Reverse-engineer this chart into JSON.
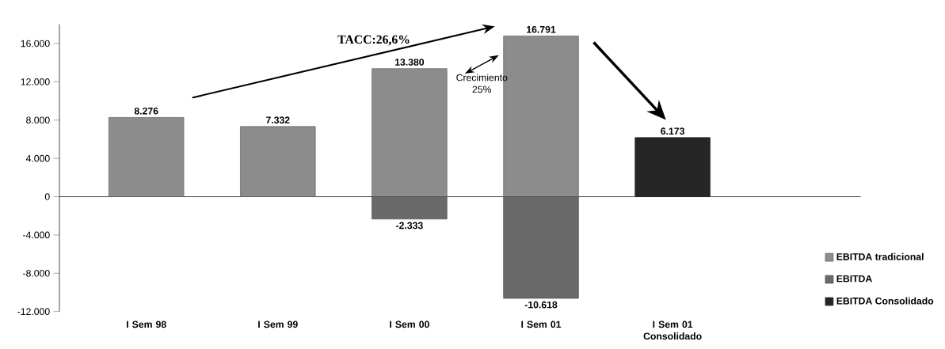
{
  "chart_data": {
    "type": "bar",
    "categories": [
      "I Sem 98",
      "I Sem 99",
      "I Sem 00",
      "I Sem 01",
      "I Sem 01 Consolidado"
    ],
    "series": [
      {
        "name": "EBITDA tradicional",
        "color": "#8c8c8c",
        "values": [
          8276,
          7332,
          13380,
          16791,
          null
        ],
        "value_labels": [
          "8.276",
          "7.332",
          "13.380",
          "16.791",
          null
        ]
      },
      {
        "name": "EBITDA",
        "color": "#6a6a6a",
        "values": [
          null,
          null,
          -2333,
          -10618,
          null
        ],
        "value_labels": [
          null,
          null,
          "-2.333",
          "-10.618",
          null
        ]
      },
      {
        "name": "EBITDA Consolidado",
        "color": "#262626",
        "values": [
          null,
          null,
          null,
          null,
          6173
        ],
        "value_labels": [
          null,
          null,
          null,
          null,
          "6.173"
        ]
      }
    ],
    "ylim": [
      -12000,
      18000
    ],
    "yticks": [
      {
        "value": -12000,
        "label": "-12.000"
      },
      {
        "value": -8000,
        "label": "-8.000"
      },
      {
        "value": -4000,
        "label": "-4.000"
      },
      0,
      {
        "value": 4000,
        "label": "4.000"
      },
      {
        "value": 8000,
        "label": "8.000"
      },
      {
        "value": 12000,
        "label": "12.000"
      },
      {
        "value": 16000,
        "label": "16.000"
      }
    ],
    "annotations": [
      "TACC:26,6%",
      "Crecimiento 25%"
    ],
    "legend": "bottom right"
  }
}
